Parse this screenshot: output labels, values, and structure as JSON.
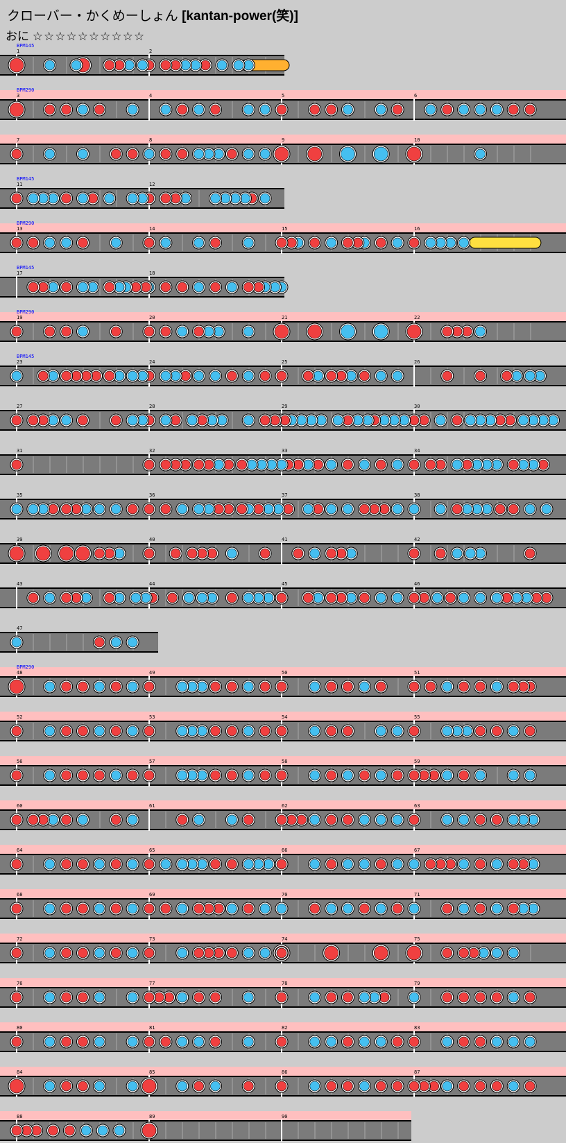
{
  "header": {
    "title": "クローバー・かくめーしょん",
    "course_tag": "[kantan-power(笑)]",
    "difficulty": "おに",
    "stars": "☆☆☆☆☆☆☆☆☆☆"
  },
  "colors": {
    "background": "#cccccc",
    "highlight": "#ffbfbf",
    "lane": "#7b7b7b",
    "don": "#f04040",
    "ka": "#45bff0",
    "roll": "#ffe040",
    "bpm_label": "#0000ff"
  },
  "rows": [
    {
      "bars": [
        [
          1,
          "BPM145"
        ],
        [
          2,
          ""
        ]
      ],
      "pink": false,
      "width": 410,
      "notes": "d1.0.L k1.10 k1.18 d1.20.L d1.28 d1.31 k1.34 k1.38 d2.0 d2.5 d2.8 k2.11 k2.14 d2.17 k2.22 k2.27 k2.30",
      "roll": [
        2,
        30,
        2,
        40,
        "b",
        "4"
      ]
    },
    {
      "bars": [
        [
          3,
          "BPM290"
        ],
        [
          4,
          ""
        ],
        [
          5,
          ""
        ],
        [
          6,
          ""
        ]
      ],
      "pink": true,
      "notes": "d3.0.L d3.10 d3.15 k3.20 d3.25 k3.35 k4.5 d4.10 k4.15 d4.20 k4.30 k4.35 d4.40 d5.10 d5.15 k5.20 k5.30 d5.35 k6.5 d6.10 k6.15 k6.20 k6.25 d6.30 d6.35"
    },
    {
      "bars": [
        [
          7,
          ""
        ],
        [
          8,
          ""
        ],
        [
          9,
          ""
        ],
        [
          10,
          ""
        ]
      ],
      "pink": true,
      "notes": "d7.0 k7.10 k7.20 d7.30 d7.35 k8.0 d8.5 d8.10 k8.15 k8.18 k8.21 d8.25 k8.30 k8.35 d9.0.L d9.10.L k9.20.L k9.30.L d10.0.L k10.20"
    },
    {
      "bars": [
        [
          11,
          "BPM145"
        ],
        [
          12,
          ""
        ]
      ],
      "pink": false,
      "width": 410,
      "notes": "d11.0 k11.5 k11.8 k11.11 d11.15 k11.20 d11.23 k11.28 k11.35 k11.38 d12.0 d12.5 d12.8 k12.11 k12.20 k12.23 k12.26 k12.29 d12.31 k12.35"
    },
    {
      "bars": [
        [
          13,
          "BPM290"
        ],
        [
          14,
          ""
        ],
        [
          15,
          ""
        ],
        [
          16,
          ""
        ]
      ],
      "pink": true,
      "notes": "d13.0 d13.5 k13.10 k13.15 d13.20 k13.30 d14.0 k14.5 k14.15 d14.20 k14.30 d15.0 d15.3 k15.5 d15.10 k15.15 d15.20 d15.23 k15.25 d15.30 k15.35 d16.0 k16.5 k16.8 k16.11 k16.15",
      "roll": [
        16,
        19,
        16,
        36,
        "y",
        ""
      ]
    },
    {
      "bars": [
        [
          17,
          "BPM145"
        ],
        [
          18,
          ""
        ]
      ],
      "pink": false,
      "width": 410,
      "notes": "d17.5 d17.8 k17.11 d17.15 k17.20 k17.23 d17.28 k17.31 k17.33 d17.36 d17.39 k18.0 d18.5 d18.10 k18.15 d18.20 k18.25 d18.30 d18.33 k18.35 k18.38 k18.40"
    },
    {
      "bars": [
        [
          19,
          "BPM290"
        ],
        [
          20,
          ""
        ],
        [
          21,
          ""
        ],
        [
          22,
          ""
        ]
      ],
      "pink": true,
      "notes": "d19.0 d19.10 d19.15 k19.20 d19.30 d20.0 d20.5 k20.10 d20.15 k20.18 k20.21 k20.30 d21.0.L d21.10.L k21.20.L k21.30.L d22.0.L d22.10 d22.13 d22.16 k22.20"
    },
    {
      "bars": [
        [
          23,
          "BPM145"
        ],
        [
          24,
          ""
        ],
        [
          25,
          ""
        ],
        [
          26,
          ""
        ]
      ],
      "pink": false,
      "notes": "k23.0 d23.8 k23.11 d23.15 d23.18 d23.21 d23.24 d23.28 k23.31 k23.35 k23.38 d23.40 k24.5 k24.8 d24.11 k24.15 k24.20 d24.25 k24.30 d24.35 d25.0 d25.8 k25.11 d25.15 d25.18 k25.21 d25.25 k25.30 k25.35 d26.10 d26.20 d26.28 k26.31 k26.35 k26.38"
    },
    {
      "bars": [
        [
          27,
          ""
        ],
        [
          28,
          ""
        ],
        [
          29,
          ""
        ],
        [
          30,
          ""
        ]
      ],
      "pink": false,
      "notes": "d27.0 d27.5 d27.8 k27.11 k27.15 d27.20 d27.30 k27.35 k27.38 d27.40 k28.5 d28.8 k28.13 d28.16 k28.19 k28.22 k28.30 d28.35 d28.38 d28.41 k29.0 k29.3 k29.6 k29.9 k29.12 k29.17 d29.20 k29.23 k29.26 d29.28 k29.31 k29.34 k29.37 d30.0 d30.3 k30.8 d30.13 k30.17 k30.20 k30.23 d30.26 d30.29 k30.33 k30.36 k30.39 k30.42"
    },
    {
      "bars": [
        [
          31,
          ""
        ],
        [
          32,
          ""
        ],
        [
          33,
          ""
        ],
        [
          34,
          ""
        ]
      ],
      "pink": false,
      "notes": "d31.0 d32.0 d32.5 d32.8 d32.11 d32.15 d32.18 k32.21 d32.24 d32.28 k32.31 k32.34 k32.37 k32.40 d32.42 d33.5 k33.8 d33.11 k33.15 d33.20 k33.25 d33.30 k33.35 d33.40 d34.5 d34.8 k34.13 d34.16 k34.19 k34.22 k34.25 d34.30 k34.33 k34.36 d34.39"
    },
    {
      "bars": [
        [
          35,
          ""
        ],
        [
          36,
          ""
        ],
        [
          37,
          ""
        ],
        [
          38,
          ""
        ]
      ],
      "pink": false,
      "notes": "k35.0 k35.5 k35.8 d35.11 d35.15 d35.18 k35.21 k35.25 k35.30 d35.35 d35.40 d36.5 k36.10 k36.15 k36.18 d36.21 d36.24 d36.28 k36.30 d36.33 k36.36 k36.39 d36.42 k37.8 d37.11 k37.15 k37.20 d37.25 d37.28 d37.31 k37.35 k37.40 k38.8 d38.13 k38.16 k38.19 k38.22 d38.26 d38.30 k38.35 k38.40"
    },
    {
      "bars": [
        [
          39,
          ""
        ],
        [
          40,
          ""
        ],
        [
          41,
          ""
        ],
        [
          42,
          ""
        ]
      ],
      "pink": false,
      "notes": "d39.0.L d39.8.L d39.15.L d39.20.L d39.25 d39.28 k39.31 d40.0 d40.8 d40.13 d40.16 d40.19 k40.25 d40.35 d41.5 k41.10 d41.15 d41.18 k41.21 d42.0 d42.8 k42.13 k42.17 k42.20 d42.35"
    },
    {
      "bars": [
        [
          43,
          ""
        ],
        [
          44,
          ""
        ],
        [
          45,
          ""
        ],
        [
          46,
          ""
        ]
      ],
      "pink": false,
      "notes": "d43.5 k43.10 d43.15 d43.18 k43.21 d43.28 k43.31 k43.36 k43.39 d43.41 d44.7 k44.12 k44.16 k44.19 d44.25 k44.30 k44.33 k44.36 d44.40 d45.0 d45.8 k45.11 d45.15 d45.18 k45.21 d45.25 k45.30 k45.35 d46.0 d46.3 k46.7 d46.11 k46.15 k46.20 k46.25 d46.28 k46.31 k46.34 d46.37 d46.40"
    },
    {
      "bars": [
        [
          47,
          ""
        ]
      ],
      "pink": false,
      "width": 228,
      "notes": "k47.0 d47.25 k47.30 k47.35"
    },
    {
      "bars": [
        [
          48,
          "BPM290"
        ],
        [
          49,
          ""
        ],
        [
          50,
          ""
        ],
        [
          51,
          ""
        ]
      ],
      "pink": true,
      "notes": "d48.0.L k48.10 d48.15 d48.20 k48.25 d48.30 k48.35 d49.0 k49.10 k49.13 k49.16 d49.20 d49.25 k49.30 d49.35 d50.0 k50.10 d50.15 d50.20 k50.25 d50.30 d51.0 d51.5 k51.10 d51.15 d51.20 k51.25 d51.30 d51.33 d51.35"
    },
    {
      "bars": [
        [
          52,
          ""
        ],
        [
          53,
          ""
        ],
        [
          54,
          ""
        ],
        [
          55,
          ""
        ]
      ],
      "pink": true,
      "notes": "d52.0 k52.10 d52.15 d52.20 k52.25 d52.30 k52.35 d53.0 k53.10 k53.13 k53.16 d53.20 d53.25 k53.30 d53.35 d54.0 k54.10 d54.15 d54.20 k54.30 k54.35 d55.0 k55.10 k55.13 k55.16 d55.20 d55.25 k55.30 d55.35"
    },
    {
      "bars": [
        [
          56,
          ""
        ],
        [
          57,
          ""
        ],
        [
          58,
          ""
        ],
        [
          59,
          ""
        ]
      ],
      "pink": true,
      "notes": "d56.0 k56.10 d56.15 d56.20 d56.25 k56.30 d56.35 d57.0 k57.10 k57.13 k57.16 d57.20 d57.25 k57.30 d57.35 d58.0 k58.10 d58.15 k58.20 d58.25 k58.30 d58.35 d59.0 d59.3 d59.6 k59.10 d59.15 k59.20 k59.30 k59.35"
    },
    {
      "bars": [
        [
          60,
          ""
        ],
        [
          61,
          ""
        ],
        [
          62,
          ""
        ],
        [
          63,
          ""
        ]
      ],
      "pink": true,
      "notes": "d60.0 d60.5 d60.8 k60.11 d60.15 k60.20 d60.30 k60.35 d61.10 k61.15 k61.25 d61.30 d62.0 d62.3 d62.6 k62.10 d62.15 d62.20 k62.25 k62.30 k62.35 d63.0 k63.10 k63.15 d63.20 d63.25 k63.30 k63.33 k63.36"
    },
    {
      "bars": [
        [
          64,
          ""
        ],
        [
          65,
          ""
        ],
        [
          66,
          ""
        ],
        [
          67,
          ""
        ]
      ],
      "pink": true,
      "notes": "d64.0 k64.10 d64.15 d64.20 k64.25 d64.30 k64.35 d65.0 k65.5 k65.10 k65.13 k65.16 d65.20 d65.25 k65.30 k65.33 k65.36 d65.40 d66.0 k66.10 d66.15 k66.20 k66.25 d66.30 k66.35 k66.40 d67.0 d67.5 d67.8 d67.11 k67.15 d67.20 k67.25 d67.30 d67.33 k67.36"
    },
    {
      "bars": [
        [
          68,
          ""
        ],
        [
          69,
          ""
        ],
        [
          70,
          ""
        ],
        [
          71,
          ""
        ]
      ],
      "pink": true,
      "notes": "d68.0 k68.10 d68.15 d68.20 k68.25 d68.30 k68.35 d69.0 d69.5 k69.10 d69.15 d69.18 d69.21 k69.25 d69.30 k69.35 k70.0 d70.10 k70.15 k70.20 d70.25 k70.30 d70.35 k71.0 d71.10 k71.15 d71.20 k71.25 d71.30 k71.33 k71.36"
    },
    {
      "bars": [
        [
          72,
          ""
        ],
        [
          73,
          ""
        ],
        [
          74,
          ""
        ],
        [
          75,
          ""
        ]
      ],
      "pink": true,
      "notes": "d72.0 k72.10 d72.15 d72.20 k72.25 d72.30 k72.35 d73.0 k73.10 d73.15 d73.18 d73.21 d73.25 k73.30 k73.35 d73.40 d74.0.L d74.15.L d74.30.L d75.0.L d75.10 d75.15 d75.18 k75.21 k75.25 k75.30"
    },
    {
      "bars": [
        [
          76,
          ""
        ],
        [
          77,
          ""
        ],
        [
          78,
          ""
        ],
        [
          79,
          ""
        ]
      ],
      "pink": true,
      "notes": "d76.0 k76.10 d76.15 d76.20 k76.25 k76.35 d77.0 d77.3 d77.6 k77.10 d77.15 d77.20 k77.30 d78.0 k78.10 d78.15 d78.20 k78.25 k78.28 d78.31 k79.0 d79.10 d79.15 d79.20 d79.25 k79.30 d79.35"
    },
    {
      "bars": [
        [
          80,
          ""
        ],
        [
          81,
          ""
        ],
        [
          82,
          ""
        ],
        [
          83,
          ""
        ]
      ],
      "pink": true,
      "notes": "d80.0 k80.10 d80.15 d80.20 k80.25 k80.35 d81.0 d81.5 k81.10 k81.15 d81.20 k81.30 d82.0 k82.10 k82.15 d82.20 k82.25 k82.30 d82.35 d83.0 k83.10 d83.15 d83.20 k83.25 k83.30 k83.35"
    },
    {
      "bars": [
        [
          84,
          ""
        ],
        [
          85,
          ""
        ],
        [
          86,
          ""
        ],
        [
          87,
          ""
        ]
      ],
      "pink": true,
      "notes": "d84.0.L k84.10 d84.15 d84.20 k84.25 k84.35 d85.0.L k85.10 d85.15 k85.20 d85.30 d86.0 k86.10 d86.15 d86.20 k86.25 d86.30 d86.35 d87.0 d87.3 d87.6 k87.10 d87.15 d87.20 d87.25 k87.30 d87.35"
    },
    {
      "bars": [
        [
          88,
          ""
        ],
        [
          89,
          ""
        ],
        [
          90,
          ""
        ]
      ],
      "pink": true,
      "width": 593,
      "notes": "d88.0 d88.3 d88.6 d88.11 d88.16 k88.21 k88.26 k88.31 d89.0.L"
    }
  ]
}
